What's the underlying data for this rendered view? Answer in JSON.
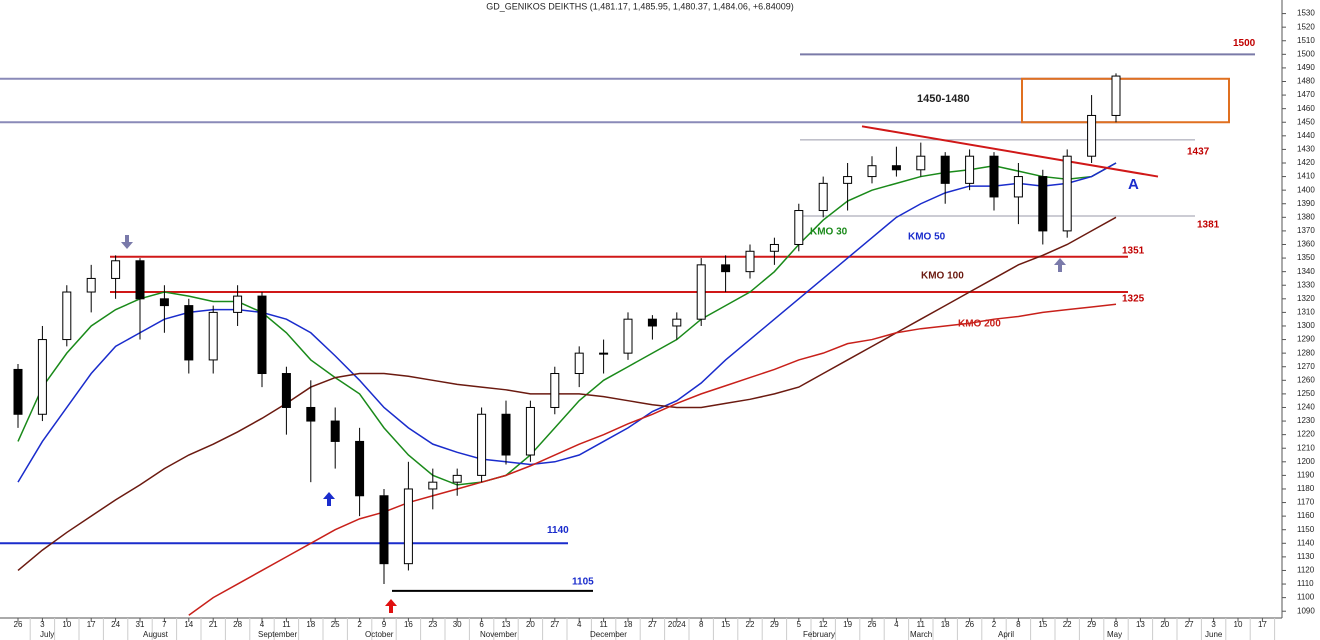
{
  "chart_data": {
    "type": "candlestick",
    "title": "GD_GENIKOS DEIKTHS (1,481.17, 1,485.95, 1,480.37, 1,484.06, +6.84009)",
    "categories": [
      "26",
      "3",
      "10",
      "17",
      "24",
      "31",
      "7",
      "14",
      "21",
      "28",
      "4",
      "11",
      "18",
      "25",
      "2",
      "9",
      "16",
      "23",
      "30",
      "6",
      "13",
      "20",
      "27",
      "4",
      "11",
      "18",
      "27",
      "2024",
      "8",
      "15",
      "22",
      "29",
      "5",
      "12",
      "19",
      "26",
      "4",
      "11",
      "18",
      "26",
      "2",
      "8",
      "15",
      "22",
      "29",
      "8",
      "13",
      "20",
      "27",
      "3",
      "10",
      "17"
    ],
    "months": [
      "July",
      "August",
      "September",
      "October",
      "November",
      "December",
      "February",
      "March",
      "April",
      "May",
      "June"
    ],
    "open": [
      1268,
      1235,
      1290,
      1325,
      1335,
      1348,
      1320,
      1315,
      1275,
      1310,
      1322,
      1265,
      1240,
      1230,
      1215,
      1175,
      1125,
      1180,
      1185,
      1190,
      1235,
      1205,
      1240,
      1265,
      1280,
      1280,
      1305,
      1300,
      1305,
      1345,
      1340,
      1355,
      1360,
      1385,
      1405,
      1410,
      1418,
      1415,
      1425,
      1405,
      1425,
      1395,
      1410,
      1370,
      1425,
      1455,
      null,
      null,
      null,
      null,
      null,
      null
    ],
    "high": [
      1272,
      1300,
      1330,
      1345,
      1352,
      1350,
      1330,
      1320,
      1315,
      1330,
      1325,
      1270,
      1260,
      1240,
      1225,
      1180,
      1200,
      1195,
      1195,
      1240,
      1245,
      1245,
      1270,
      1285,
      1290,
      1310,
      1308,
      1310,
      1350,
      1352,
      1360,
      1365,
      1390,
      1410,
      1420,
      1425,
      1432,
      1435,
      1428,
      1430,
      1428,
      1420,
      1415,
      1430,
      1470,
      1486,
      null,
      null,
      null,
      null,
      null,
      null
    ],
    "low": [
      1225,
      1230,
      1285,
      1310,
      1320,
      1290,
      1295,
      1265,
      1265,
      1300,
      1255,
      1220,
      1185,
      1195,
      1160,
      1110,
      1120,
      1165,
      1175,
      1185,
      1198,
      1200,
      1235,
      1255,
      1265,
      1275,
      1290,
      1290,
      1300,
      1325,
      1335,
      1345,
      1355,
      1380,
      1385,
      1405,
      1410,
      1410,
      1390,
      1400,
      1385,
      1375,
      1360,
      1365,
      1420,
      1450,
      null,
      null,
      null,
      null,
      null,
      null
    ],
    "close": [
      1235,
      1290,
      1325,
      1335,
      1348,
      1320,
      1315,
      1275,
      1310,
      1322,
      1265,
      1240,
      1230,
      1215,
      1175,
      1125,
      1180,
      1185,
      1190,
      1235,
      1205,
      1240,
      1265,
      1280,
      1280,
      1305,
      1300,
      1305,
      1345,
      1340,
      1355,
      1360,
      1385,
      1405,
      1410,
      1418,
      1415,
      1425,
      1405,
      1425,
      1395,
      1410,
      1370,
      1425,
      1455,
      1484,
      null,
      null,
      null,
      null,
      null,
      null
    ],
    "ylim": [
      1085,
      1540
    ],
    "yticks": [
      1090,
      1100,
      1110,
      1120,
      1130,
      1140,
      1150,
      1160,
      1170,
      1180,
      1190,
      1200,
      1210,
      1220,
      1230,
      1240,
      1250,
      1260,
      1270,
      1280,
      1290,
      1300,
      1310,
      1320,
      1330,
      1340,
      1350,
      1360,
      1370,
      1380,
      1390,
      1400,
      1410,
      1420,
      1430,
      1440,
      1450,
      1460,
      1470,
      1480,
      1490,
      1500,
      1510,
      1520,
      1530
    ],
    "moving_averages": [
      {
        "name": "KMO 30",
        "color": "#1a8a1a",
        "values": [
          1215,
          1255,
          1280,
          1300,
          1312,
          1320,
          1325,
          1322,
          1318,
          1318,
          1310,
          1295,
          1275,
          1262,
          1250,
          1225,
          1205,
          1190,
          1183,
          1185,
          1190,
          1205,
          1225,
          1245,
          1260,
          1270,
          1280,
          1290,
          1305,
          1315,
          1325,
          1340,
          1360,
          1378,
          1392,
          1400,
          1405,
          1410,
          1413,
          1415,
          1418,
          1414,
          1410,
          1408,
          1410,
          1420,
          null,
          null,
          null,
          null,
          null,
          null
        ]
      },
      {
        "name": "KMO 50",
        "color": "#1a2ccc",
        "values": [
          1185,
          1215,
          1240,
          1265,
          1285,
          1295,
          1305,
          1310,
          1312,
          1312,
          1310,
          1305,
          1295,
          1278,
          1260,
          1240,
          1225,
          1213,
          1207,
          1202,
          1200,
          1198,
          1200,
          1205,
          1215,
          1225,
          1237,
          1245,
          1258,
          1275,
          1290,
          1305,
          1320,
          1335,
          1350,
          1365,
          1380,
          1390,
          1398,
          1403,
          1403,
          1405,
          1403,
          1405,
          1410,
          1420,
          null,
          null,
          null,
          null,
          null,
          null
        ]
      },
      {
        "name": "KMO 100",
        "color": "#6b1a10",
        "values": [
          1120,
          1135,
          1148,
          1160,
          1172,
          1183,
          1195,
          1205,
          1213,
          1222,
          1232,
          1243,
          1255,
          1262,
          1265,
          1265,
          1263,
          1260,
          1257,
          1255,
          1253,
          1250,
          1250,
          1250,
          1248,
          1245,
          1242,
          1240,
          1240,
          1243,
          1246,
          1250,
          1255,
          1265,
          1275,
          1285,
          1295,
          1305,
          1315,
          1325,
          1335,
          1345,
          1352,
          1360,
          1370,
          1380,
          null,
          null,
          null,
          null,
          null,
          null
        ]
      },
      {
        "name": "KMO 200",
        "color": "#c8201a",
        "values": [
          null,
          null,
          null,
          null,
          null,
          null,
          null,
          1087,
          1100,
          1110,
          1120,
          1130,
          1140,
          1150,
          1158,
          1163,
          1170,
          1175,
          1180,
          1185,
          1190,
          1197,
          1205,
          1213,
          1220,
          1228,
          1235,
          1243,
          1250,
          1256,
          1262,
          1268,
          1275,
          1280,
          1287,
          1290,
          1295,
          1298,
          1300,
          1302,
          1305,
          1307,
          1310,
          1312,
          1314,
          1316,
          null,
          null,
          null,
          null,
          null,
          null
        ]
      }
    ],
    "levels": [
      {
        "value": 1500,
        "color": "#7a7aa8",
        "label": "1500"
      },
      {
        "value": 1482,
        "color": "#8a8ab8"
      },
      {
        "value": 1450,
        "color": "#8a8ab8"
      },
      {
        "value": 1437,
        "color": "#9a9aaa",
        "label": "1437"
      },
      {
        "value": 1381,
        "color": "#9a9aaa",
        "label": "1381"
      },
      {
        "value": 1351,
        "color": "#d01818",
        "label": "1351"
      },
      {
        "value": 1325,
        "color": "#d01818",
        "label": "1325"
      },
      {
        "value": 1140,
        "color": "#1a2ccc",
        "label": "1140"
      },
      {
        "value": 1105,
        "color": "#000000",
        "label": "1105"
      }
    ],
    "trendline": [
      1447,
      1410
    ],
    "annotations": [
      "1450-1480",
      "A"
    ]
  }
}
